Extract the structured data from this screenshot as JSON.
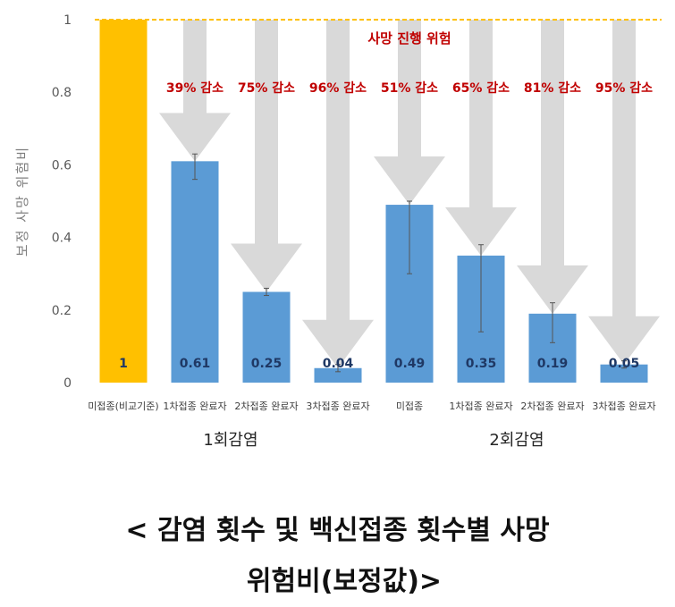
{
  "chart_data": {
    "type": "bar",
    "ylabel": "보정 사망 위험비",
    "ylim": [
      0,
      1
    ],
    "y_ticks": [
      "0",
      "0.2",
      "0.4",
      "0.6",
      "0.8",
      "1"
    ],
    "y_tick_values": [
      0,
      0.2,
      0.4,
      0.6,
      0.8,
      1
    ],
    "grid": "off",
    "reference_line": {
      "value": 1,
      "label": "사망 진행 위험",
      "color": "#FFC000",
      "style": "dashed"
    },
    "categories": [
      "미접종(비교기준)",
      "1차접종 완료자",
      "2차접종 완료자",
      "3차접종 완료자",
      "미접종",
      "1차접종 완료자",
      "2차접종 완료자",
      "3차접종 완료자"
    ],
    "values": [
      1,
      0.61,
      0.25,
      0.04,
      0.49,
      0.35,
      0.19,
      0.05
    ],
    "value_labels": [
      "1",
      "0.61",
      "0.25",
      "0.04",
      "0.49",
      "0.35",
      "0.19",
      "0.05"
    ],
    "error_bars": [
      null,
      [
        0.56,
        0.63
      ],
      [
        0.24,
        0.26
      ],
      [
        0.03,
        0.05
      ],
      [
        0.3,
        0.5
      ],
      [
        0.14,
        0.38
      ],
      [
        0.11,
        0.22
      ],
      [
        0.04,
        0.06
      ]
    ],
    "bar_colors": [
      "#FFC000",
      "#5B9BD5",
      "#5B9BD5",
      "#5B9BD5",
      "#5B9BD5",
      "#5B9BD5",
      "#5B9BD5",
      "#5B9BD5"
    ],
    "reductions": [
      "39% 감소",
      "75% 감소",
      "96% 감소",
      "51% 감소",
      "65% 감소",
      "81% 감소",
      "95% 감소"
    ],
    "reduction_color": "#C00000",
    "arrow_color": "#D9D9D9",
    "groups": [
      {
        "label": "1회감염",
        "categories": [
          0,
          1,
          2,
          3
        ]
      },
      {
        "label": "2회감염",
        "categories": [
          4,
          5,
          6,
          7
        ]
      }
    ]
  },
  "caption": {
    "line1": "< 감염 횟수 및 백신접종 횟수별 사망",
    "line2": "위험비(보정값)>"
  }
}
